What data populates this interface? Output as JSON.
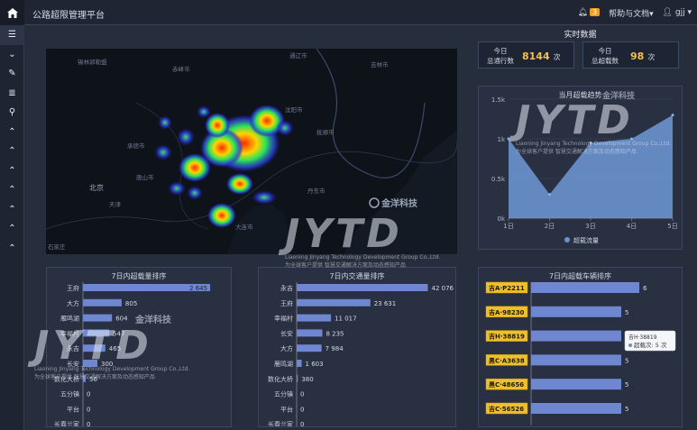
{
  "app": {
    "title": "公路超限管理平台"
  },
  "header": {
    "notif_count": "3",
    "help": "帮助与文档▾",
    "user": "gjj ▾"
  },
  "realtime": {
    "title": "实时数据",
    "pass_label": "今日\n总通行数",
    "pass_value": "8144",
    "pass_unit": "次",
    "over_label": "今日\n总超载数",
    "over_value": "98",
    "over_unit": "次"
  },
  "map": {
    "brand": "金洋科技",
    "labels": [
      "锡林郭勒盟",
      "赤峰市",
      "通辽市",
      "承德市",
      "沈阳市",
      "抚顺市",
      "吉林市",
      "北京",
      "天津",
      "唐山市",
      "大连市",
      "丹东市",
      "石家庄"
    ]
  },
  "watermark": {
    "big": "JYTD",
    "line1": "Liaoning Jinyang Technology Development Group Co.,Ltd.",
    "line2": "为全球客户提供  智慧交通解决方案及动态感知产品",
    "brand": "金洋科技"
  },
  "chart_data": [
    {
      "type": "area",
      "title": "当月超载趋势",
      "x": [
        "1日",
        "2日",
        "3日",
        "4日",
        "5日"
      ],
      "y_ticks": [
        "0k",
        "0.5k",
        "1k",
        "1.5k"
      ],
      "ylim": [
        0,
        1500
      ],
      "series": [
        {
          "name": "超载流量",
          "values": [
            1000,
            300,
            950,
            1000,
            1300
          ],
          "color": "#6a93cf"
        }
      ],
      "legend": "bottom"
    },
    {
      "type": "bar",
      "title": "7日内超载量排序",
      "categories": [
        "王府",
        "大方",
        "雁鸣湖",
        "幸福村",
        "永吉",
        "长安",
        "数化大桥",
        "五分镇",
        "平台",
        "长春兰家"
      ],
      "values": [
        2645,
        805,
        604,
        547,
        465,
        300,
        56,
        0,
        0,
        0
      ],
      "labels": [
        "2 645",
        "805",
        "604",
        "547",
        "465",
        "300",
        "56",
        "0",
        "0",
        "0"
      ],
      "xlim": [
        0,
        3000
      ]
    },
    {
      "type": "bar",
      "title": "7日内交通量排序",
      "categories": [
        "永吉",
        "王府",
        "幸福村",
        "长安",
        "大方",
        "雁鸣湖",
        "数化大桥",
        "五分镇",
        "平台",
        "长春兰家"
      ],
      "values": [
        42076,
        23631,
        11017,
        8235,
        7984,
        1603,
        380,
        0,
        0,
        0
      ],
      "labels": [
        "42 076",
        "23 631",
        "11 017",
        "8 235",
        "7 984",
        "1 603",
        "380",
        "0",
        "0",
        "0"
      ],
      "xlim": [
        0,
        48000
      ]
    },
    {
      "type": "bar",
      "title": "7日内超载车辆排序",
      "categories": [
        "吉A·P2211",
        "吉A·98230",
        "吉H·38819",
        "黑C·A3638",
        "黑C·48656",
        "吉C·56526"
      ],
      "values": [
        6,
        5,
        5,
        5,
        5,
        5
      ],
      "xlim": [
        0,
        7
      ],
      "tooltip": {
        "plate": "吉H·38819",
        "label": "超载次:",
        "value": "5 次"
      }
    }
  ]
}
